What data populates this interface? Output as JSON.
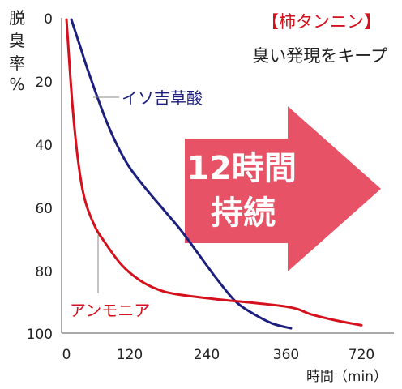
{
  "chart_data": {
    "type": "line",
    "ylabel_chars": [
      "脱",
      "臭",
      "率",
      "%"
    ],
    "xlabel": "時間（min）",
    "x_ticks": [
      "0",
      "120",
      "240",
      "360",
      "720"
    ],
    "y_ticks": [
      "0",
      "20",
      "40",
      "60",
      "80",
      "100"
    ],
    "ylim": [
      0,
      100
    ],
    "y_inverted": true,
    "grid": false,
    "series": [
      {
        "name": "イソ吉草酸",
        "color": "#1c1f7e",
        "x": [
          "0",
          "15",
          "30",
          "60",
          "90",
          "120",
          "150",
          "180",
          "210",
          "240",
          "270",
          "300",
          "330",
          "360"
        ],
        "values": [
          0,
          9,
          18,
          34,
          46,
          54,
          61,
          68,
          76,
          84,
          91,
          95,
          98,
          99.5
        ]
      },
      {
        "name": "アンモニア",
        "color": "#d4111d",
        "x": [
          "0",
          "10",
          "20",
          "30",
          "45",
          "60",
          "90",
          "120",
          "150",
          "180",
          "240",
          "360",
          "480",
          "600",
          "720"
        ],
        "values": [
          0,
          28,
          47,
          58,
          66,
          71,
          79,
          84,
          87,
          88.5,
          90,
          92.5,
          95,
          97,
          98.5
        ]
      }
    ],
    "annotation": {
      "title": "【柿タンニン】",
      "subtitle": "臭い発現をキープ",
      "arrow_text_line1": "12時間",
      "arrow_text_line2": "持続",
      "arrow_color": "#e85266"
    }
  }
}
